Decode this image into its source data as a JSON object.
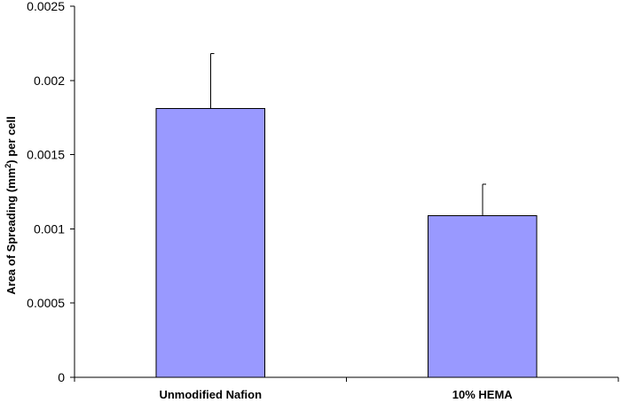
{
  "chart_data": {
    "type": "bar",
    "categories": [
      "Unmodified Nafion",
      "10% HEMA"
    ],
    "values": [
      0.00181,
      0.00109
    ],
    "error_upper": [
      0.00037,
      0.00021
    ],
    "ylabel_prefix": "Area of Spreading (mm",
    "ylabel_superscript": "2",
    "ylabel_suffix": ") per cell",
    "ylim": [
      0,
      0.0025
    ],
    "yticks": [
      "0",
      "0.0005",
      "0.001",
      "0.0015",
      "0.002",
      "0.0025"
    ],
    "grid": false,
    "legend": "none",
    "bar_color": "#9999ff"
  }
}
